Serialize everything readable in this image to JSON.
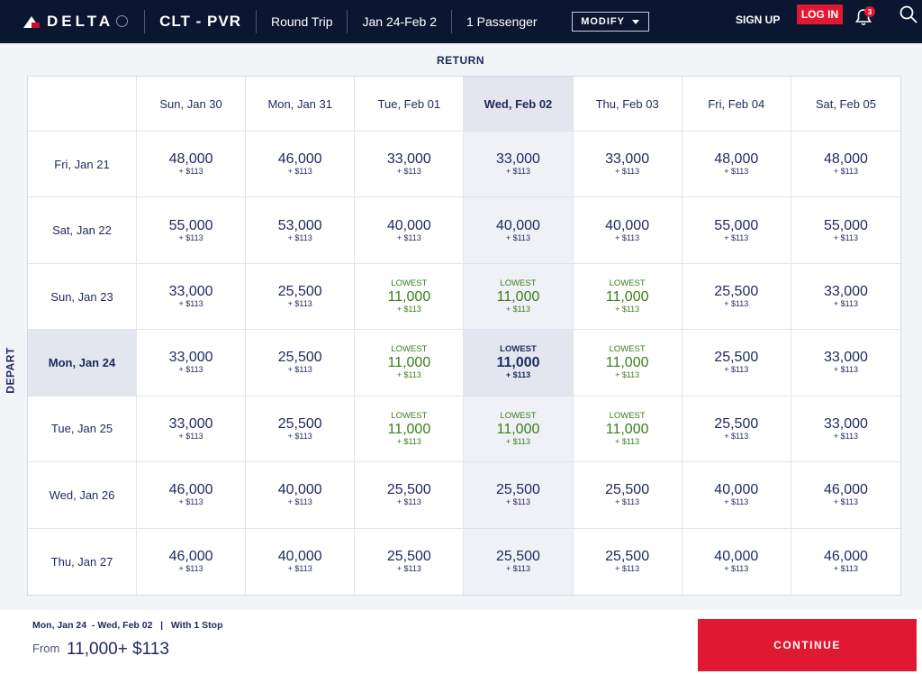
{
  "header": {
    "brand": "DELTA",
    "route": "CLT - PVR",
    "trip_type": "Round Trip",
    "dates": "Jan 24-Feb 2",
    "passengers": "1 Passenger",
    "modify_label": "MODIFY",
    "signup_label": "SIGN UP",
    "login_label": "LOG IN",
    "notification_count": "3"
  },
  "grid": {
    "return_label": "RETURN",
    "depart_label": "DEPART",
    "return_dates": [
      "Sun, Jan 30",
      "Mon, Jan 31",
      "Tue, Feb 01",
      "Wed, Feb 02",
      "Thu, Feb 03",
      "Fri, Feb 04",
      "Sat, Feb 05"
    ],
    "depart_dates": [
      "Fri, Jan 21",
      "Sat, Jan 22",
      "Sun, Jan 23",
      "Mon, Jan 24",
      "Tue, Jan 25",
      "Wed, Jan 26",
      "Thu, Jan 27"
    ],
    "selected_return_index": 3,
    "selected_depart_index": 3,
    "lowest_label": "LOWEST",
    "rows": [
      [
        {
          "miles": "48,000",
          "tax": "+ $113"
        },
        {
          "miles": "46,000",
          "tax": "+ $113"
        },
        {
          "miles": "33,000",
          "tax": "+ $113"
        },
        {
          "miles": "33,000",
          "tax": "+ $113"
        },
        {
          "miles": "33,000",
          "tax": "+ $113"
        },
        {
          "miles": "48,000",
          "tax": "+ $113"
        },
        {
          "miles": "48,000",
          "tax": "+ $113"
        }
      ],
      [
        {
          "miles": "55,000",
          "tax": "+ $113"
        },
        {
          "miles": "53,000",
          "tax": "+ $113"
        },
        {
          "miles": "40,000",
          "tax": "+ $113"
        },
        {
          "miles": "40,000",
          "tax": "+ $113"
        },
        {
          "miles": "40,000",
          "tax": "+ $113"
        },
        {
          "miles": "55,000",
          "tax": "+ $113"
        },
        {
          "miles": "55,000",
          "tax": "+ $113"
        }
      ],
      [
        {
          "miles": "33,000",
          "tax": "+ $113"
        },
        {
          "miles": "25,500",
          "tax": "+ $113"
        },
        {
          "miles": "11,000",
          "tax": "+ $113",
          "lowest": true
        },
        {
          "miles": "11,000",
          "tax": "+ $113",
          "lowest": true
        },
        {
          "miles": "11,000",
          "tax": "+ $113",
          "lowest": true
        },
        {
          "miles": "25,500",
          "tax": "+ $113"
        },
        {
          "miles": "33,000",
          "tax": "+ $113"
        }
      ],
      [
        {
          "miles": "33,000",
          "tax": "+ $113"
        },
        {
          "miles": "25,500",
          "tax": "+ $113"
        },
        {
          "miles": "11,000",
          "tax": "+ $113",
          "lowest": true
        },
        {
          "miles": "11,000",
          "tax": "+ $113",
          "lowest": true
        },
        {
          "miles": "11,000",
          "tax": "+ $113",
          "lowest": true
        },
        {
          "miles": "25,500",
          "tax": "+ $113"
        },
        {
          "miles": "33,000",
          "tax": "+ $113"
        }
      ],
      [
        {
          "miles": "33,000",
          "tax": "+ $113"
        },
        {
          "miles": "25,500",
          "tax": "+ $113"
        },
        {
          "miles": "11,000",
          "tax": "+ $113",
          "lowest": true
        },
        {
          "miles": "11,000",
          "tax": "+ $113",
          "lowest": true
        },
        {
          "miles": "11,000",
          "tax": "+ $113",
          "lowest": true
        },
        {
          "miles": "25,500",
          "tax": "+ $113"
        },
        {
          "miles": "33,000",
          "tax": "+ $113"
        }
      ],
      [
        {
          "miles": "46,000",
          "tax": "+ $113"
        },
        {
          "miles": "40,000",
          "tax": "+ $113"
        },
        {
          "miles": "25,500",
          "tax": "+ $113"
        },
        {
          "miles": "25,500",
          "tax": "+ $113"
        },
        {
          "miles": "25,500",
          "tax": "+ $113"
        },
        {
          "miles": "40,000",
          "tax": "+ $113"
        },
        {
          "miles": "46,000",
          "tax": "+ $113"
        }
      ],
      [
        {
          "miles": "46,000",
          "tax": "+ $113"
        },
        {
          "miles": "40,000",
          "tax": "+ $113"
        },
        {
          "miles": "25,500",
          "tax": "+ $113"
        },
        {
          "miles": "25,500",
          "tax": "+ $113"
        },
        {
          "miles": "25,500",
          "tax": "+ $113"
        },
        {
          "miles": "40,000",
          "tax": "+ $113"
        },
        {
          "miles": "46,000",
          "tax": "+ $113"
        }
      ]
    ]
  },
  "summary": {
    "dates_line": "Mon, Jan 24  - Wed, Feb 02   |   With 1 Stop",
    "from_label": "From",
    "price": "11,000+ $113",
    "continue_label": "CONTINUE"
  },
  "colors": {
    "header_bg": "#0b1630",
    "accent_red": "#e01933",
    "lowest_green": "#3a7d1a",
    "navy_text": "#1d2a5c"
  }
}
